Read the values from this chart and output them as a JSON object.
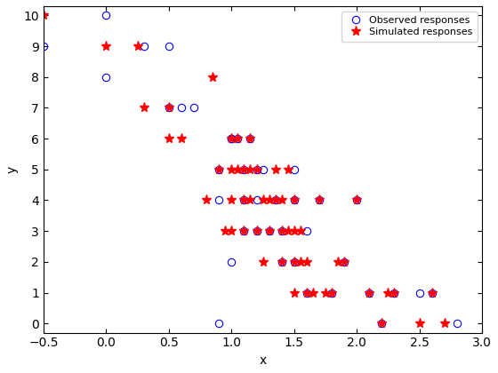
{
  "obs_x": [
    -0.5,
    0.0,
    0.0,
    0.3,
    0.5,
    0.5,
    0.6,
    0.7,
    0.9,
    0.9,
    0.9,
    1.0,
    1.0,
    1.0,
    1.05,
    1.1,
    1.1,
    1.1,
    1.15,
    1.2,
    1.2,
    1.2,
    1.25,
    1.3,
    1.35,
    1.4,
    1.4,
    1.5,
    1.5,
    1.5,
    1.6,
    1.6,
    1.7,
    1.8,
    1.9,
    2.0,
    2.1,
    2.2,
    2.3,
    2.5,
    2.6,
    2.8
  ],
  "obs_y": [
    9,
    10,
    8,
    9,
    7,
    9,
    7,
    7,
    0,
    5,
    4,
    6,
    6,
    2,
    6,
    5,
    4,
    3,
    6,
    5,
    4,
    3,
    5,
    3,
    4,
    3,
    2,
    5,
    4,
    2,
    3,
    1,
    4,
    1,
    2,
    4,
    1,
    0,
    1,
    1,
    1,
    0
  ],
  "sim_x": [
    -0.5,
    0.0,
    0.25,
    0.3,
    0.5,
    0.5,
    0.6,
    0.8,
    0.85,
    0.9,
    0.95,
    1.0,
    1.0,
    1.0,
    1.0,
    1.05,
    1.05,
    1.1,
    1.1,
    1.1,
    1.15,
    1.15,
    1.15,
    1.2,
    1.2,
    1.25,
    1.25,
    1.3,
    1.3,
    1.35,
    1.35,
    1.4,
    1.4,
    1.4,
    1.45,
    1.45,
    1.5,
    1.5,
    1.5,
    1.5,
    1.55,
    1.55,
    1.6,
    1.6,
    1.65,
    1.7,
    1.75,
    1.8,
    1.85,
    1.9,
    2.0,
    2.1,
    2.2,
    2.25,
    2.3,
    2.5,
    2.6,
    2.7
  ],
  "sim_y": [
    10,
    9,
    9,
    7,
    6,
    7,
    6,
    4,
    8,
    5,
    3,
    6,
    5,
    4,
    3,
    6,
    5,
    5,
    4,
    3,
    6,
    5,
    4,
    5,
    3,
    4,
    2,
    4,
    3,
    5,
    4,
    4,
    3,
    2,
    5,
    3,
    4,
    3,
    2,
    1,
    3,
    2,
    2,
    1,
    1,
    4,
    1,
    1,
    2,
    2,
    4,
    1,
    0,
    1,
    1,
    0,
    1,
    0
  ],
  "xlabel": "x",
  "ylabel": "y",
  "xlim": [
    -0.5,
    3.0
  ],
  "ylim": [
    -0.3,
    10.3
  ],
  "yticks": [
    0,
    1,
    2,
    3,
    4,
    5,
    6,
    7,
    8,
    9,
    10
  ],
  "xticks": [
    -0.5,
    0,
    0.5,
    1.0,
    1.5,
    2.0,
    2.5,
    3.0
  ],
  "obs_color": "#0000ff",
  "sim_color": "#ff0000",
  "obs_marker": "o",
  "sim_marker": "*",
  "obs_label": "Observed responses",
  "sim_label": "Simulated responses",
  "markersize_obs": 6,
  "markersize_sim": 8,
  "figwidth": 5.6,
  "figheight": 4.2,
  "dpi": 100
}
